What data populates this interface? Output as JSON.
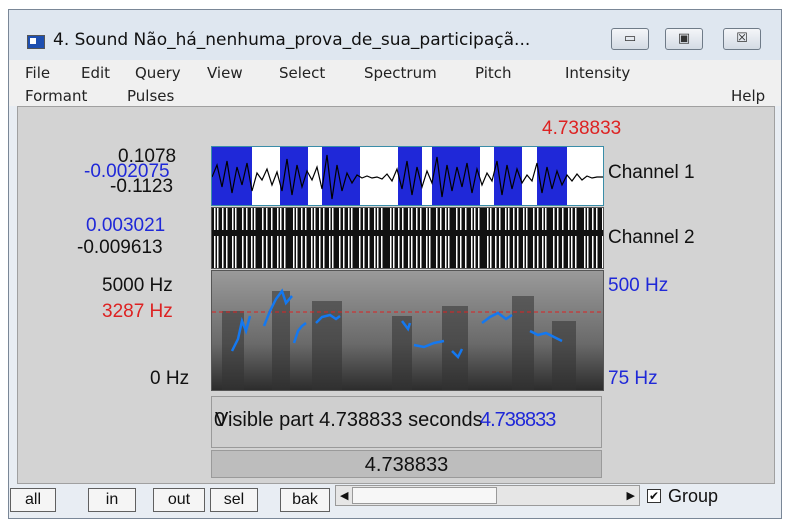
{
  "window": {
    "title": "4. Sound Não_há_nenhuma_prova_de_sua_participaçã...",
    "minimize_glyph": "▭",
    "maximize_glyph": "▣",
    "close_glyph": "☒"
  },
  "menus": {
    "row1": [
      "File",
      "Edit",
      "Query",
      "View",
      "Select",
      "Spectrum",
      "Pitch",
      "Intensity"
    ],
    "row2": [
      "Formant",
      "Pulses"
    ],
    "help": "Help"
  },
  "cursor_time": "4.738833",
  "channel1": {
    "max": "0.1078",
    "cursor_value": "-0.002075",
    "min": "-0.1123",
    "name": "Channel 1"
  },
  "channel2": {
    "max": "0.003021",
    "min": "-0.009613",
    "name": "Channel 2"
  },
  "spectrogram": {
    "top": "5000 Hz",
    "cursor_freq": "3287 Hz",
    "bottom": "0 Hz"
  },
  "pitch": {
    "top": "500 Hz",
    "bottom": "75 Hz"
  },
  "visible_part": {
    "start": "0",
    "label": "Visible part 4.738833 seconds",
    "end": "4.738833"
  },
  "total_duration": "4.738833",
  "buttons": {
    "all": "all",
    "in": "in",
    "out": "out",
    "sel": "sel",
    "bak": "bak"
  },
  "group": {
    "label": "Group",
    "checked": true
  },
  "colors": {
    "waveform_fill": "#1f28d8",
    "pitch_curve": "#1478f0",
    "cursor": "#dd2222",
    "label_blue": "#1f28d8"
  }
}
